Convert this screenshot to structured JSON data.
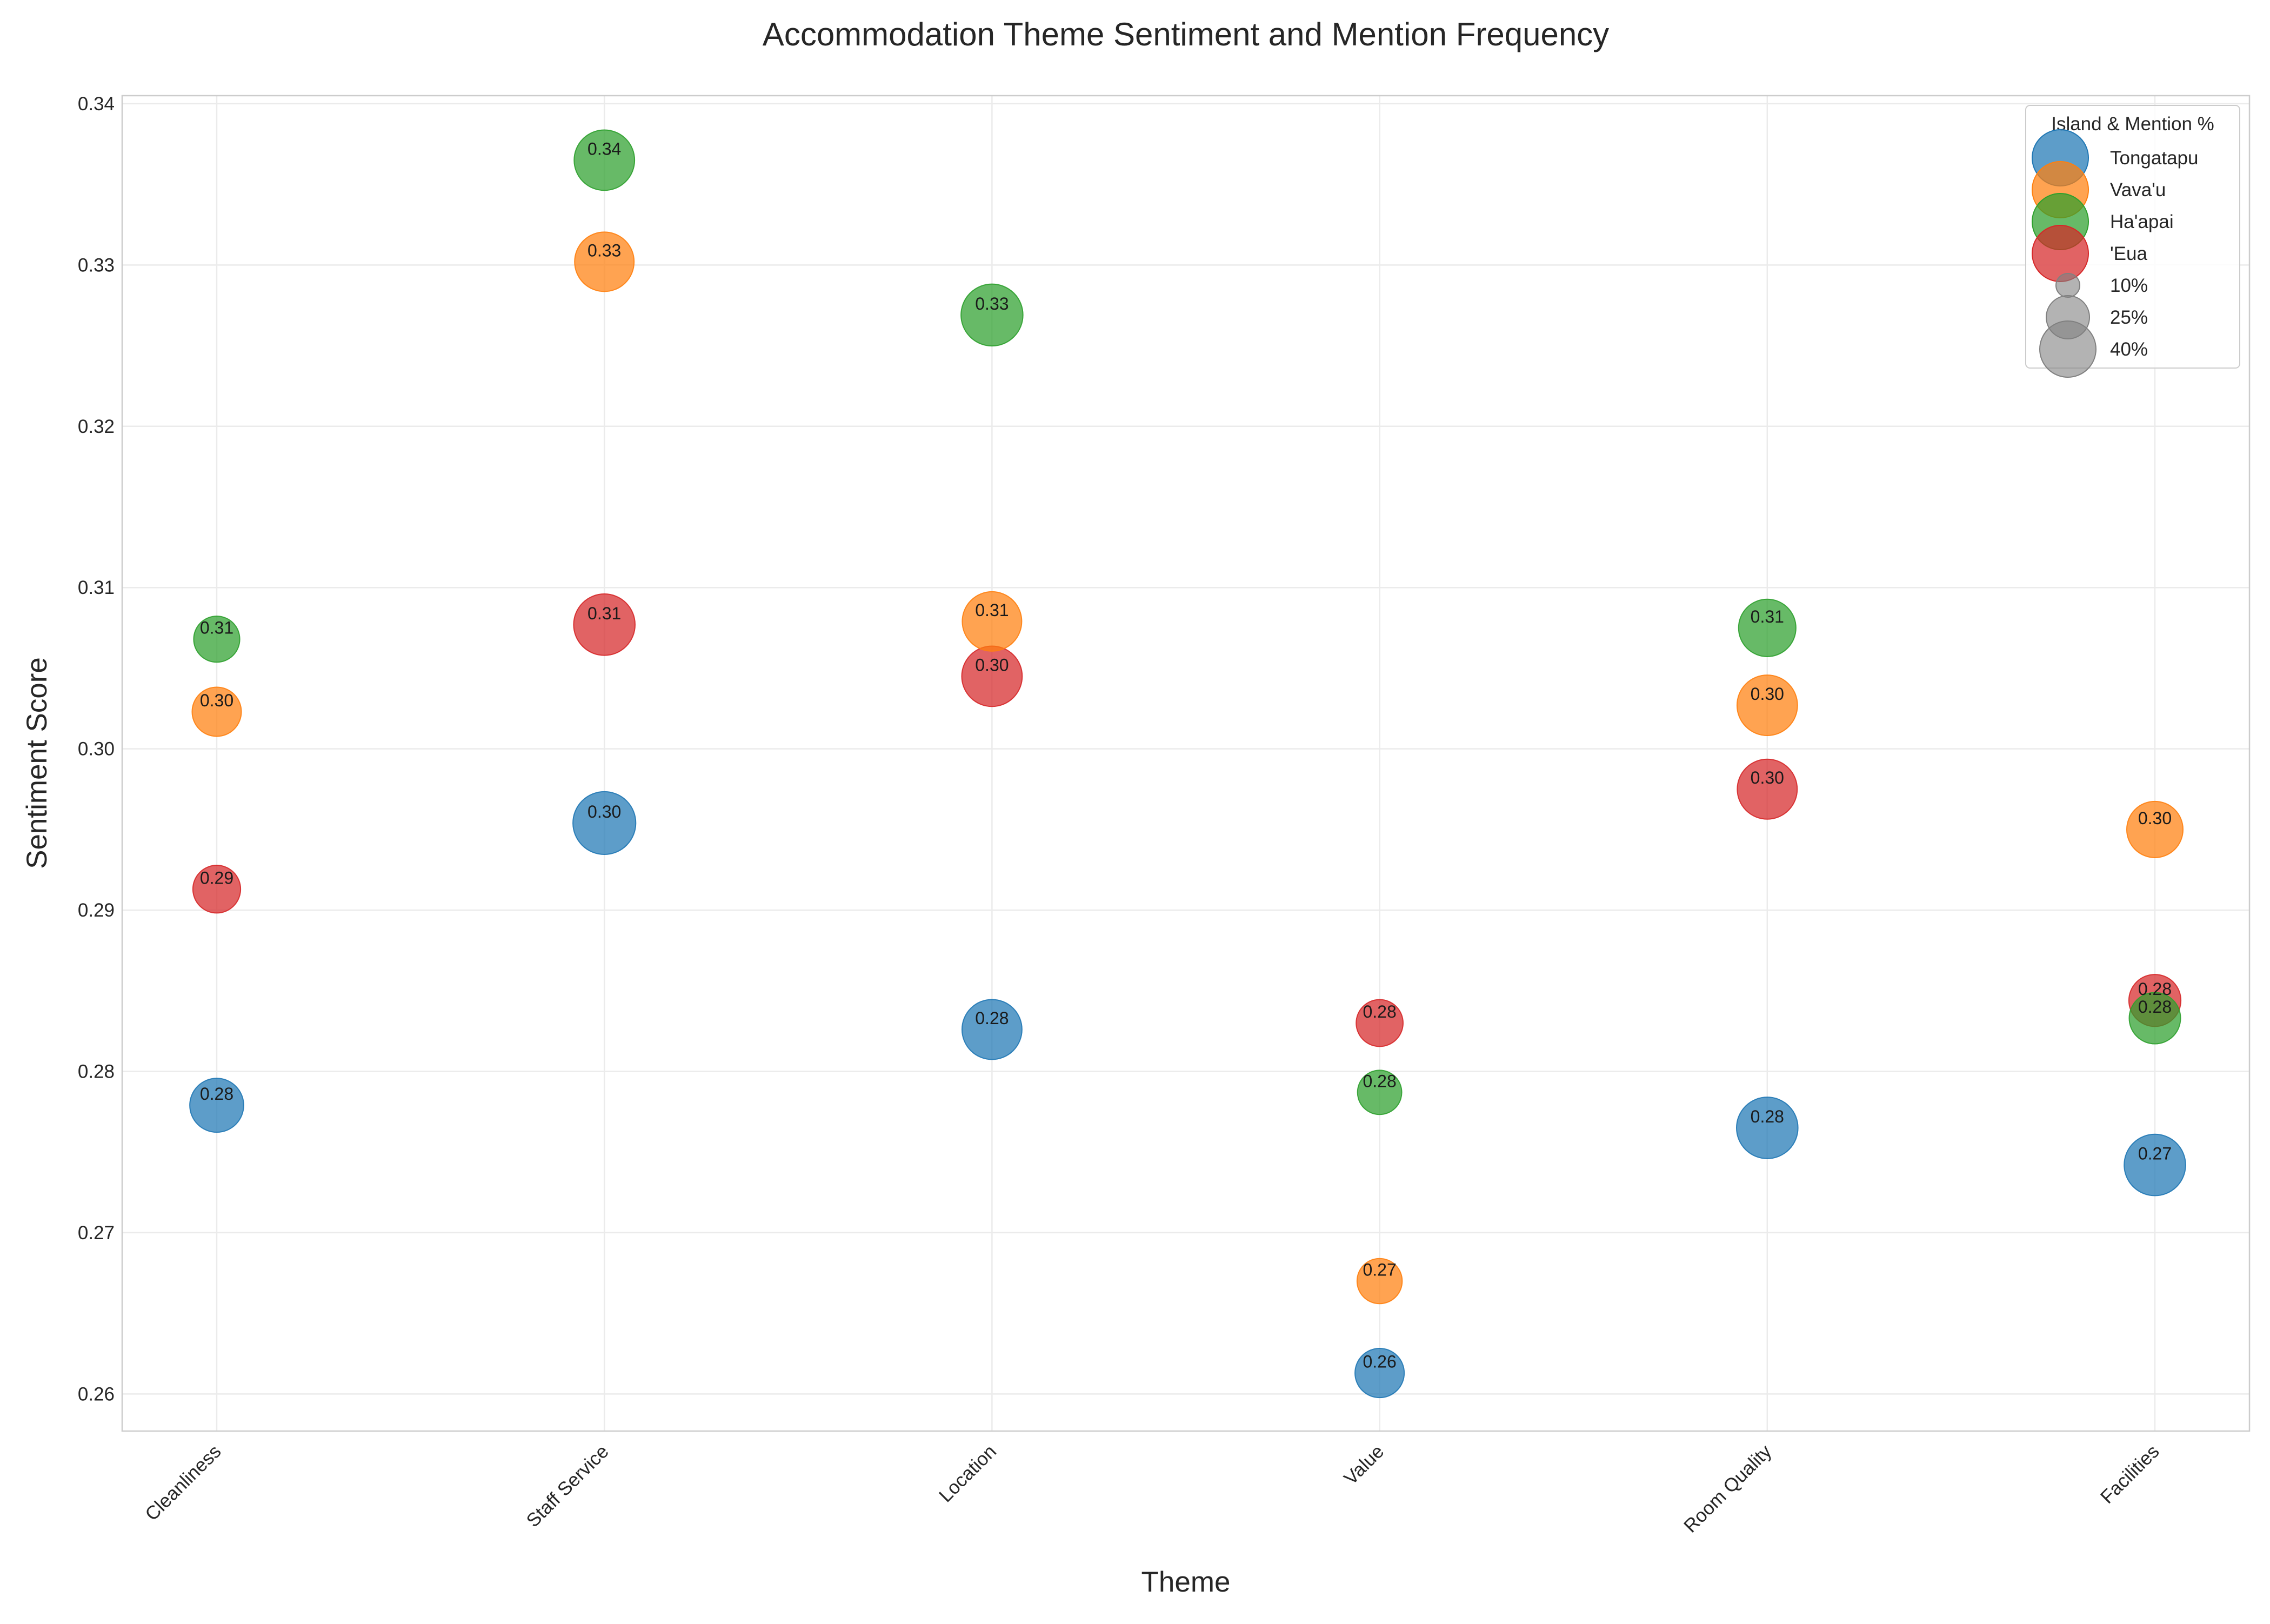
{
  "chart_data": {
    "type": "scatter",
    "title": "Accommodation Theme Sentiment and Mention Frequency",
    "xlabel": "Theme",
    "ylabel": "Sentiment Score",
    "categories": [
      "Cleanliness",
      "Staff Service",
      "Location",
      "Value",
      "Room Quality",
      "Facilities"
    ],
    "ylim": [
      0.2577,
      0.3405
    ],
    "yticks": [
      0.26,
      0.27,
      0.28,
      0.29,
      0.3,
      0.31,
      0.32,
      0.33,
      0.34
    ],
    "ytick_labels": [
      "0.26",
      "0.27",
      "0.28",
      "0.29",
      "0.30",
      "0.31",
      "0.32",
      "0.33",
      "0.34"
    ],
    "grid": true,
    "legend_title": "Island & Mention %",
    "legend_position": "top-right",
    "size_legend": [
      {
        "label": "10%",
        "value": 10
      },
      {
        "label": "25%",
        "value": 25
      },
      {
        "label": "40%",
        "value": 40
      }
    ],
    "series": [
      {
        "name": "Tongatapu",
        "color": "#1f77b4",
        "points": [
          {
            "category": "Cleanliness",
            "y": 0.2779,
            "mention": 22,
            "label": "0.28"
          },
          {
            "category": "Staff Service",
            "y": 0.2954,
            "mention": 39,
            "label": "0.30"
          },
          {
            "category": "Location",
            "y": 0.2826,
            "mention": 33,
            "label": "0.28"
          },
          {
            "category": "Value",
            "y": 0.2613,
            "mention": 15,
            "label": "0.26"
          },
          {
            "category": "Room Quality",
            "y": 0.2765,
            "mention": 36,
            "label": "0.28"
          },
          {
            "category": "Facilities",
            "y": 0.2742,
            "mention": 36,
            "label": "0.27"
          }
        ]
      },
      {
        "name": "Vava'u",
        "color": "#ff7f0e",
        "points": [
          {
            "category": "Cleanliness",
            "y": 0.3023,
            "mention": 15,
            "label": "0.30"
          },
          {
            "category": "Staff Service",
            "y": 0.3302,
            "mention": 32,
            "label": "0.33"
          },
          {
            "category": "Location",
            "y": 0.3079,
            "mention": 32,
            "label": "0.31"
          },
          {
            "category": "Value",
            "y": 0.267,
            "mention": 10,
            "label": "0.27"
          },
          {
            "category": "Room Quality",
            "y": 0.3027,
            "mention": 34,
            "label": "0.30"
          },
          {
            "category": "Facilities",
            "y": 0.295,
            "mention": 26,
            "label": "0.30"
          }
        ]
      },
      {
        "name": "Ha'apai",
        "color": "#2ca02c",
        "points": [
          {
            "category": "Cleanliness",
            "y": 0.3068,
            "mention": 11,
            "label": "0.31"
          },
          {
            "category": "Staff Service",
            "y": 0.3365,
            "mention": 34,
            "label": "0.34"
          },
          {
            "category": "Location",
            "y": 0.3269,
            "mention": 37,
            "label": "0.33"
          },
          {
            "category": "Value",
            "y": 0.2787,
            "mention": 9,
            "label": "0.28"
          },
          {
            "category": "Room Quality",
            "y": 0.3075,
            "mention": 28,
            "label": "0.31"
          },
          {
            "category": "Facilities",
            "y": 0.2833,
            "mention": 18,
            "label": "0.28"
          }
        ]
      },
      {
        "name": "'Eua",
        "color": "#d62728",
        "points": [
          {
            "category": "Cleanliness",
            "y": 0.2913,
            "mention": 13,
            "label": "0.29"
          },
          {
            "category": "Staff Service",
            "y": 0.3077,
            "mention": 36,
            "label": "0.31"
          },
          {
            "category": "Location",
            "y": 0.3045,
            "mention": 34,
            "label": "0.30"
          },
          {
            "category": "Value",
            "y": 0.283,
            "mention": 12,
            "label": "0.28"
          },
          {
            "category": "Room Quality",
            "y": 0.2975,
            "mention": 33,
            "label": "0.30"
          },
          {
            "category": "Facilities",
            "y": 0.2844,
            "mention": 19,
            "label": "0.28"
          }
        ]
      }
    ]
  }
}
